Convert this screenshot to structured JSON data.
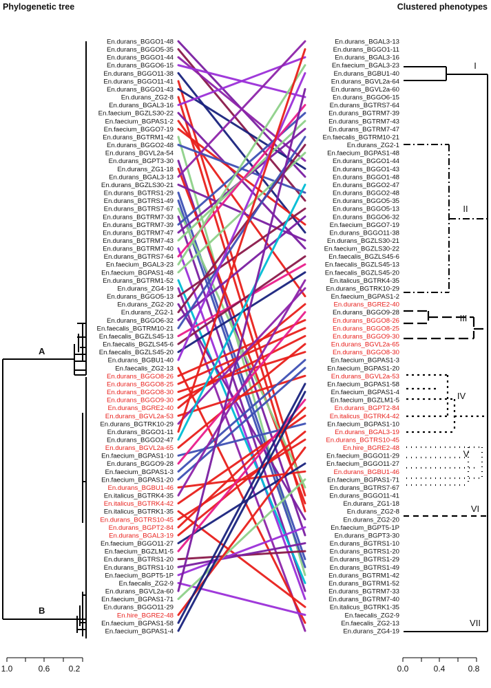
{
  "titles": {
    "left": "Phylogenetic tree",
    "right": "Clustered phenotypes"
  },
  "nodes": {
    "a": "A",
    "b": "B"
  },
  "clusters": [
    "I",
    "II",
    "III",
    "IV",
    "V",
    "VI",
    "VII"
  ],
  "left_axis_ticks": [
    "1.0",
    "0.6",
    "0.2"
  ],
  "right_axis_ticks": [
    "0.0",
    "0.4",
    "0.8"
  ],
  "colors": {
    "highlight": "#e8201c"
  },
  "left_labels": [
    {
      "t": "En.durans_BGGO1-48"
    },
    {
      "t": "En.durans_BGGO5-35"
    },
    {
      "t": "En.durans_BGGO1-44"
    },
    {
      "t": "En.durans_BGGO6-15"
    },
    {
      "t": "En.durans_BGGO11-38"
    },
    {
      "t": "En.durans_BGGO11-41"
    },
    {
      "t": "En.durans_BGGO1-43"
    },
    {
      "t": "En.durans_ZG2-8"
    },
    {
      "t": "En.durans_BGAL3-16"
    },
    {
      "t": "En.faecium_BGZLS30-22"
    },
    {
      "t": "En.faecium_BGPAS1-2"
    },
    {
      "t": "En.faecium_BGGO7-19"
    },
    {
      "t": "En.durans_BGTRM1-42"
    },
    {
      "t": "En.durans_BGGO2-48"
    },
    {
      "t": "En.durans_BGVL2a-54"
    },
    {
      "t": "En.durans_BGPT3-30"
    },
    {
      "t": "En.durans_ZG1-18"
    },
    {
      "t": "En.durans_BGAL3-13"
    },
    {
      "t": "En.durans_BGZLS30-21"
    },
    {
      "t": "En.durans_BGTRS1-29"
    },
    {
      "t": "En.durans_BGTRS1-49"
    },
    {
      "t": "En.durans_BGTRS7-67"
    },
    {
      "t": "En.durans_BGTRM7-33"
    },
    {
      "t": "En.durans_BGTRM7-39"
    },
    {
      "t": "En.durans_BGTRM7-47"
    },
    {
      "t": "En.durans_BGTRM7-43"
    },
    {
      "t": "En.durans_BGTRM7-40"
    },
    {
      "t": "En.durans_BGTRS7-64"
    },
    {
      "t": "En.faecium_BGAL3-23"
    },
    {
      "t": "En.faecium_BGPAS1-48"
    },
    {
      "t": "En.durans_BGTRM1-52"
    },
    {
      "t": "En.durans_ZG4-19"
    },
    {
      "t": "En.durans_BGGO5-13"
    },
    {
      "t": "En.durans_ZG2-20"
    },
    {
      "t": "En.durans_ZG2-1"
    },
    {
      "t": "En.durans_BGGO6-32"
    },
    {
      "t": "En.faecalis_BGTRM10-21"
    },
    {
      "t": "En.faecalis_BGZLS45-13"
    },
    {
      "t": "En.faecalis_BGZLS45-6"
    },
    {
      "t": "En.faecalis_BGZLS45-20"
    },
    {
      "t": "En.durans_BGBU1-40"
    },
    {
      "t": "En.faecalis_ZG2-13"
    },
    {
      "t": "En.durans_BGGO8-26",
      "r": true
    },
    {
      "t": "En.durans_BGGO8-25",
      "r": true
    },
    {
      "t": "En.durans_BGGO8-30",
      "r": true
    },
    {
      "t": "En.durans_BGGO9-30",
      "r": true
    },
    {
      "t": "En.durans_BGRE2-40",
      "r": true
    },
    {
      "t": "En.durans_BGVL2a-53",
      "r": true
    },
    {
      "t": "En.durans_BGTRK10-29"
    },
    {
      "t": "En.durans_BGGO1-11"
    },
    {
      "t": "En.durans_BGGO2-47"
    },
    {
      "t": "En.durans_BGVL2a-65",
      "r": true
    },
    {
      "t": "En.faecium_BGPAS1-10"
    },
    {
      "t": "En.durans_BGGO9-28"
    },
    {
      "t": "En.faecium_BGPAS1-3"
    },
    {
      "t": "En.faecium_BGPAS1-20"
    },
    {
      "t": "En.durans_BGBU1-46",
      "r": true
    },
    {
      "t": "En.italicus_BGTRK4-35"
    },
    {
      "t": "En.italicus_BGTRK4-42",
      "r": true
    },
    {
      "t": "En.italicus_BGTRK1-35"
    },
    {
      "t": "En.durans_BGTRS10-45",
      "r": true
    },
    {
      "t": "En.durans_BGPT2-84",
      "r": true
    },
    {
      "t": "En.durans_BGAL3-19",
      "r": true
    },
    {
      "t": "En.faecium_BGGO11-27"
    },
    {
      "t": "En.faecium_BGZLM1-5"
    },
    {
      "t": "En.durans_BGTRS1-20"
    },
    {
      "t": "En.durans_BGTRS1-10"
    },
    {
      "t": "En.faecium_BGPT5-1P"
    },
    {
      "t": "En.faecalis_ZG2-9"
    },
    {
      "t": "En.durans_BGVL2a-60"
    },
    {
      "t": "En.faecium_BGPAS1-71"
    },
    {
      "t": "En.durans_BGGO11-29"
    },
    {
      "t": "En.hire_BGRE2-48",
      "r": true
    },
    {
      "t": "En.faecium_BGPAS1-58"
    },
    {
      "t": "En.faecium_BGPAS1-4"
    }
  ],
  "right_labels": [
    {
      "t": "En.durans_BGAL3-13"
    },
    {
      "t": "En.durans_BGGO1-11"
    },
    {
      "t": "En.durans_BGAL3-16"
    },
    {
      "t": "En.faecium_BGAL3-23"
    },
    {
      "t": "En.durans_BGBU1-40"
    },
    {
      "t": "En.durans_BGVL2a-64"
    },
    {
      "t": "En.durans_BGVL2a-60"
    },
    {
      "t": "En.durans_BGGO6-15"
    },
    {
      "t": "En.durans_BGTRS7-64"
    },
    {
      "t": "En.durans_BGTRM7-39"
    },
    {
      "t": "En.durans_BGTRM7-43"
    },
    {
      "t": "En.durans_BGTRM7-47"
    },
    {
      "t": "En.faecalis_BGTRM10-21"
    },
    {
      "t": "En.durans_ZG2-1"
    },
    {
      "t": "En.faecium_BGPAS1-48"
    },
    {
      "t": "En.durans_BGGO1-44"
    },
    {
      "t": "En.durans_BGGO1-43"
    },
    {
      "t": "En.durans_BGGO1-48"
    },
    {
      "t": "En.durans_BGGO2-47"
    },
    {
      "t": "En.durans_BGGO2-48"
    },
    {
      "t": "En.durans_BGGO5-35"
    },
    {
      "t": "En.durans_BGGO5-13"
    },
    {
      "t": "En.durans_BGGO6-32"
    },
    {
      "t": "En.faecium_BGGO7-19"
    },
    {
      "t": "En.durans_BGGO11-38"
    },
    {
      "t": "En.durans_BGZLS30-21"
    },
    {
      "t": "En.faecium_BGZLS30-22"
    },
    {
      "t": "En.faecalis_BGZLS45-6"
    },
    {
      "t": "En.faecalis_BGZLS45-13"
    },
    {
      "t": "En.faecalis_BGZLS45-20"
    },
    {
      "t": "En.italicus_BGTRK4-35"
    },
    {
      "t": "En.durans_BGTRK10-29"
    },
    {
      "t": "En.faecium_BGPAS1-2"
    },
    {
      "t": "En.durans_BGRE2-40",
      "r": true
    },
    {
      "t": "En.durans_BGGO9-28"
    },
    {
      "t": "En.durans_BGGO8-26",
      "r": true
    },
    {
      "t": "En.durans_BGGO8-25",
      "r": true
    },
    {
      "t": "En.durans_BGGO9-30",
      "r": true
    },
    {
      "t": "En.durans_BGVL2a-65",
      "r": true
    },
    {
      "t": "En.durans_BGGO8-30",
      "r": true
    },
    {
      "t": "En.faecium_BGPAS1-3"
    },
    {
      "t": "En.faecium_BGPAS1-20"
    },
    {
      "t": "En.durans_BGVL2a-53",
      "r": true
    },
    {
      "t": "En.faecium_BGPAS1-58"
    },
    {
      "t": "En.faecium_BGPAS1-4"
    },
    {
      "t": "En.faecium_BGZLM1-5"
    },
    {
      "t": "En.durans_BGPT2-84",
      "r": true
    },
    {
      "t": "En.italicus_BGTRK4-42",
      "r": true
    },
    {
      "t": "En.faecium_BGPAS1-10"
    },
    {
      "t": "En.durans_BGAL3-19",
      "r": true
    },
    {
      "t": "En.durans_BGTRS10-45",
      "r": true
    },
    {
      "t": "En.hire_BGRE2-48",
      "r": true
    },
    {
      "t": "En.faecium_BGGO11-29"
    },
    {
      "t": "En.faecium_BGGO11-27"
    },
    {
      "t": "En.durans_BGBU1-46",
      "r": true
    },
    {
      "t": "En.faecium_BGPAS1-71"
    },
    {
      "t": "En.durans_BGTRS7-67"
    },
    {
      "t": "En.durans_BGGO11-41"
    },
    {
      "t": "En.durans_ZG1-18"
    },
    {
      "t": "En.durans_ZG2-8"
    },
    {
      "t": "En.durans_ZG2-20"
    },
    {
      "t": "En.faecium_BGPT5-1P"
    },
    {
      "t": "En.durans_BGPT3-30"
    },
    {
      "t": "En.durans_BGTRS1-10"
    },
    {
      "t": "En.durans_BGTRS1-20"
    },
    {
      "t": "En.durans_BGTRS1-29"
    },
    {
      "t": "En.durans_BGTRS1-49"
    },
    {
      "t": "En.durans_BGTRM1-42"
    },
    {
      "t": "En.durans_BGTRM1-52"
    },
    {
      "t": "En.durans_BGTRM7-33"
    },
    {
      "t": "En.durans_BGTRM7-40"
    },
    {
      "t": "En.italicus_BGTRK1-35"
    },
    {
      "t": "En.faecalis_ZG2-9"
    },
    {
      "t": "En.faecalis_ZG2-13"
    },
    {
      "t": "En.durans_ZG4-19"
    }
  ]
}
